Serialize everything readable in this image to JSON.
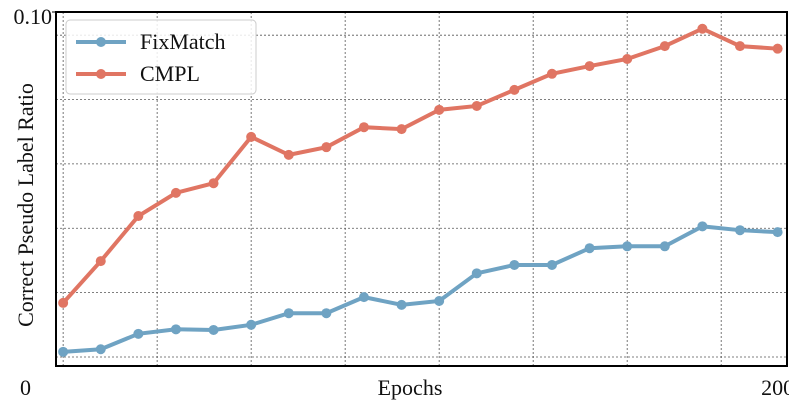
{
  "chart_data": {
    "type": "line",
    "xlabel": "Epochs",
    "ylabel": "Correct Pseudo Label Ratio",
    "x": [
      10,
      20,
      30,
      40,
      50,
      60,
      70,
      80,
      90,
      100,
      110,
      120,
      130,
      140,
      150,
      160,
      170,
      180,
      190,
      200
    ],
    "series": [
      {
        "name": "FixMatch",
        "color": "#6fa3c3",
        "values": [
          0.0472,
          0.0476,
          0.05,
          0.0507,
          0.0506,
          0.0514,
          0.0532,
          0.0532,
          0.0557,
          0.0545,
          0.0551,
          0.0594,
          0.0607,
          0.0607,
          0.0633,
          0.0636,
          0.0636,
          0.0667,
          0.0661,
          0.0658
        ]
      },
      {
        "name": "CMPL",
        "color": "#e07563",
        "values": [
          0.0548,
          0.0613,
          0.0683,
          0.0719,
          0.0734,
          0.0806,
          0.0778,
          0.079,
          0.0821,
          0.0818,
          0.0848,
          0.0854,
          0.0879,
          0.0904,
          0.0916,
          0.0927,
          0.0947,
          0.0974,
          0.0947,
          0.0943
        ]
      }
    ],
    "xlim": [
      8.1,
      202.5
    ],
    "xticks": [
      0,
      200
    ],
    "ylim": [
      0.045,
      0.1
    ],
    "yticks": [
      {
        "value": 0.1,
        "label": "0.10"
      }
    ],
    "xgrid": [
      10,
      35,
      60,
      85,
      110,
      135,
      160,
      185
    ],
    "ygrid": [
      0.0964,
      0.0864,
      0.0764,
      0.0664,
      0.0564,
      0.0464
    ],
    "grid": true,
    "legend": "upper left"
  }
}
